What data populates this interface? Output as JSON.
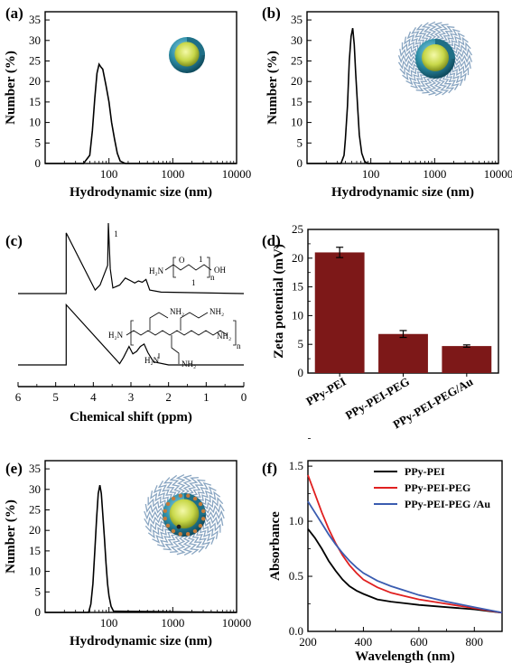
{
  "panels": {
    "a": {
      "label": "(a)"
    },
    "b": {
      "label": "(b)"
    },
    "c": {
      "label": "(c)"
    },
    "d": {
      "label": "(d)"
    },
    "e": {
      "label": "(e)"
    },
    "f": {
      "label": "(f)"
    }
  },
  "colors": {
    "bar": "#7d1818",
    "core": "#c8d84a",
    "shell": "#2e8fa8",
    "chains": "#8aa6c2",
    "gold": "#c47a3a",
    "line_black": "#000000",
    "line_red": "#e02020",
    "line_blue": "#3a5cb0"
  },
  "chart_data": [
    {
      "panel": "a",
      "type": "line",
      "xscale": "log",
      "xlim": [
        10,
        10000
      ],
      "ylim": [
        0,
        37
      ],
      "xlabel": "Hydrodynamic size (nm)",
      "ylabel": "Number (%)",
      "xticks": [
        "100",
        "1000",
        "10000"
      ],
      "yticks": [
        "0",
        "5",
        "10",
        "15",
        "20",
        "25",
        "30",
        "35"
      ],
      "illustration": "core-shell-particle-icon",
      "x": [
        10,
        40,
        50,
        55,
        60,
        65,
        70,
        75,
        80,
        90,
        100,
        110,
        122,
        135,
        150,
        180,
        10000
      ],
      "y": [
        0,
        0,
        2,
        8,
        16,
        22,
        24.2,
        23.5,
        23,
        19,
        15,
        10,
        6,
        2.5,
        0.6,
        0,
        0
      ]
    },
    {
      "panel": "b",
      "type": "line",
      "xscale": "log",
      "xlim": [
        10,
        10000
      ],
      "ylim": [
        0,
        37
      ],
      "xlabel": "Hydrodynamic size (nm)",
      "ylabel": "Number (%)",
      "xticks": [
        "100",
        "1000",
        "10000"
      ],
      "yticks": [
        "0",
        "5",
        "10",
        "15",
        "20",
        "25",
        "30",
        "35"
      ],
      "illustration": "pegylated-particle-icon",
      "x": [
        10,
        34,
        38,
        40,
        43,
        46,
        49,
        52,
        55,
        58,
        62,
        66,
        72,
        80,
        90,
        10000
      ],
      "y": [
        0,
        0,
        2,
        6,
        14,
        25,
        31,
        33,
        29,
        22,
        14,
        7,
        2.5,
        0.5,
        0,
        0
      ]
    },
    {
      "panel": "c",
      "type": "line",
      "xlim": [
        6,
        0
      ],
      "xlabel": "Chemical shift (ppm)",
      "xticks": [
        "6",
        "5",
        "4",
        "3",
        "2",
        "1",
        "0"
      ],
      "peak_label": "1",
      "structures": {
        "peg": {
          "left": "H₂N",
          "repeat_sub": "n",
          "end": "OH",
          "position_labels": [
            "1",
            "1"
          ]
        },
        "pei": {
          "n": "n",
          "amine": "NH₂",
          "left_amine": "H₂N"
        }
      },
      "series": [
        {
          "x": [
            6,
            4.72,
            4.72,
            3.95,
            3.82,
            3.62,
            3.6,
            3.55,
            3.48,
            3.3,
            3.15,
            3.0,
            2.9,
            2.8,
            2.7,
            2.6,
            2.5,
            2.2,
            0
          ],
          "y": [
            0,
            0,
            0.86,
            0.05,
            0.12,
            0.4,
            1.0,
            0.35,
            0.08,
            0.12,
            0.22,
            0.18,
            0.15,
            0.18,
            0.16,
            0.2,
            0.05,
            0.02,
            0
          ]
        },
        {
          "x": [
            6,
            4.72,
            4.72,
            3.3,
            3.2,
            3.05,
            2.95,
            2.85,
            2.75,
            2.65,
            2.55,
            2.4,
            2.0,
            0
          ],
          "y": [
            0,
            0,
            0.98,
            0.02,
            0.12,
            0.3,
            0.18,
            0.22,
            0.3,
            0.34,
            0.2,
            0.05,
            0,
            0
          ]
        }
      ]
    },
    {
      "panel": "d",
      "type": "bar",
      "categories": [
        "PPy-PEI",
        "PPy-PEI-PEG",
        "PPy-PEI-PEG/Au"
      ],
      "values": [
        21.0,
        6.8,
        4.7
      ],
      "errors": [
        0.9,
        0.6,
        0.2
      ],
      "ylabel": "Zeta potential (mV)",
      "ylim": [
        0,
        25
      ],
      "yticks": [
        "0",
        "5",
        "10",
        "15",
        "20",
        "25"
      ]
    },
    {
      "panel": "e",
      "type": "line",
      "xscale": "log",
      "xlim": [
        10,
        10000
      ],
      "ylim": [
        0,
        37
      ],
      "xlabel": "Hydrodynamic size (nm)",
      "ylabel": "Number (%)",
      "xticks": [
        "100",
        "1000",
        "10000"
      ],
      "yticks": [
        "0",
        "5",
        "10",
        "15",
        "20",
        "25",
        "30",
        "35"
      ],
      "illustration": "au-decorated-particle-icon",
      "x": [
        10,
        48,
        52,
        56,
        60,
        64,
        68,
        72,
        76,
        80,
        85,
        90,
        95,
        100,
        108,
        118,
        10000
      ],
      "y": [
        0,
        0,
        2,
        7,
        15,
        23,
        29,
        31,
        29,
        24,
        18,
        12,
        7,
        4,
        1.5,
        0.3,
        0
      ]
    },
    {
      "panel": "f",
      "type": "line",
      "xlim": [
        200,
        900
      ],
      "ylim": [
        0,
        1.55
      ],
      "xlabel": "Wavelength (nm)",
      "ylabel": "Absorbance",
      "xticks": [
        "200",
        "400",
        "600",
        "800"
      ],
      "yticks": [
        "0.0",
        "0.5",
        "1.0",
        "1.5"
      ],
      "legend_position": "top-right",
      "series": [
        {
          "name": "PPy-PEI",
          "color": "#000000",
          "x": [
            200,
            225,
            250,
            275,
            300,
            325,
            350,
            375,
            400,
            450,
            500,
            550,
            600,
            700,
            800,
            900
          ],
          "y": [
            0.93,
            0.85,
            0.75,
            0.64,
            0.55,
            0.47,
            0.41,
            0.37,
            0.34,
            0.29,
            0.27,
            0.255,
            0.24,
            0.22,
            0.2,
            0.17
          ]
        },
        {
          "name": "PPy-PEI-PEG",
          "color": "#e02020",
          "x": [
            200,
            225,
            250,
            275,
            300,
            325,
            350,
            375,
            400,
            450,
            500,
            550,
            600,
            700,
            800,
            900
          ],
          "y": [
            1.42,
            1.25,
            1.08,
            0.93,
            0.8,
            0.69,
            0.6,
            0.53,
            0.47,
            0.4,
            0.35,
            0.32,
            0.29,
            0.25,
            0.21,
            0.17
          ]
        },
        {
          "name": "PPy-PEI-PEG /Au",
          "color": "#3a5cb0",
          "x": [
            200,
            225,
            250,
            275,
            300,
            325,
            350,
            375,
            400,
            450,
            500,
            550,
            600,
            700,
            800,
            900
          ],
          "y": [
            1.18,
            1.08,
            0.98,
            0.88,
            0.79,
            0.71,
            0.64,
            0.58,
            0.53,
            0.46,
            0.41,
            0.37,
            0.33,
            0.27,
            0.22,
            0.17
          ]
        }
      ]
    }
  ]
}
